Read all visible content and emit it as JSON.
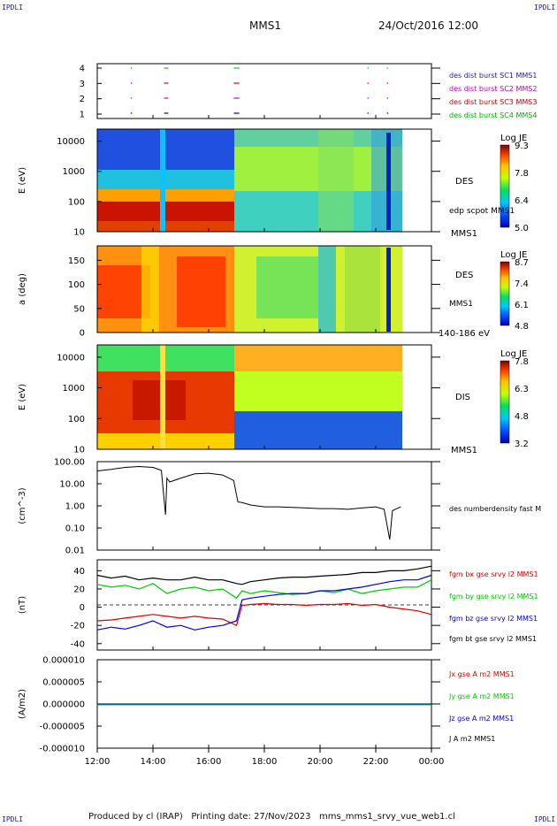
{
  "header": {
    "corner_label": "IPDLI",
    "mission": "MMS1",
    "date": "24/Oct/2016 12:00"
  },
  "footer": {
    "text": "Produced by cl (IRAP)   Printing date: 27/Nov/2023   mms_mms1_srvy_vue_web1.cl"
  },
  "x_axis": {
    "ticks": [
      "12:00",
      "14:00",
      "16:00",
      "18:00",
      "20:00",
      "22:00",
      "00:00"
    ]
  },
  "colors": {
    "black": "#000000",
    "red": "#e00000",
    "green": "#00cc00",
    "blue": "#0000e0",
    "magenta": "#cc00cc",
    "label_blue": "#1a1ab0",
    "label_magenta": "#c000c0",
    "label_red": "#d00000",
    "label_green": "#00b000"
  },
  "chart_data": [
    {
      "type": "timeline",
      "name": "burst-panel",
      "yticks": [
        "4",
        "3",
        "2",
        "1"
      ],
      "legend": [
        {
          "label": "des dist burst SC1 MMS1",
          "color": "#1a1ab0"
        },
        {
          "label": "des dist burst SC2 MMS2",
          "color": "#c000c0"
        },
        {
          "label": "des dist burst SC3 MMS3",
          "color": "#d00000"
        },
        {
          "label": "des dist burst SC4 MMS4",
          "color": "#00b000"
        }
      ],
      "intervals_hours": [
        [
          13.2,
          13.25
        ],
        [
          14.4,
          14.55
        ],
        [
          16.9,
          17.1
        ],
        [
          21.7,
          21.72
        ],
        [
          22.4,
          22.42
        ]
      ]
    },
    {
      "type": "heatmap",
      "name": "des-energy-spectrogram",
      "ylabel": "E (eV)",
      "yticks": [
        "10000",
        "1000",
        "100",
        "10"
      ],
      "ylog": true,
      "ylim": [
        10,
        25000
      ],
      "right_label": "DES",
      "right_sub_label": "edp scpot MMS1",
      "right_bottom_label": "MMS1",
      "colorbar": {
        "title": "Log JE",
        "ticks": [
          "9.3",
          "7.8",
          "6.4",
          "5.0"
        ]
      }
    },
    {
      "type": "heatmap",
      "name": "des-pitch-angle",
      "ylabel": "a (deg)",
      "yticks": [
        "150",
        "100",
        "50",
        "0"
      ],
      "ylim": [
        0,
        180
      ],
      "right_label": "DES",
      "right_sub_label": "MMS1",
      "right_bottom_label": "140-186 eV",
      "colorbar": {
        "title": "Log JE",
        "ticks": [
          "8.7",
          "7.4",
          "6.1",
          "4.8"
        ]
      }
    },
    {
      "type": "heatmap",
      "name": "dis-energy-spectrogram",
      "ylabel": "E (eV)",
      "yticks": [
        "10000",
        "1000",
        "100",
        "10"
      ],
      "ylog": true,
      "ylim": [
        10,
        25000
      ],
      "right_label": "DIS",
      "right_bottom_label": "MMS1",
      "colorbar": {
        "title": "Log JE",
        "ticks": [
          "7.8",
          "6.3",
          "4.8",
          "3.2"
        ]
      }
    },
    {
      "type": "line",
      "name": "density-panel",
      "ylabel": "(cm^-3)",
      "yticks": [
        "100.00",
        "10.00",
        "1.00",
        "0.10",
        "0.01"
      ],
      "ylog": true,
      "ylim": [
        0.01,
        100
      ],
      "legend": [
        {
          "label": "des numberdensity fast M",
          "color": "#000000"
        }
      ],
      "x_hours": [
        12.0,
        12.5,
        13.0,
        13.5,
        14.0,
        14.3,
        14.45,
        14.5,
        14.6,
        15.0,
        15.5,
        16.0,
        16.5,
        16.9,
        17.05,
        17.2,
        17.5,
        18.0,
        18.5,
        19.0,
        19.5,
        20.0,
        20.5,
        21.0,
        21.5,
        22.0,
        22.3,
        22.5,
        22.6,
        22.7,
        22.9
      ],
      "values": [
        38,
        45,
        55,
        60,
        55,
        40,
        0.4,
        18,
        12,
        18,
        28,
        30,
        25,
        14,
        1.5,
        1.4,
        1.1,
        0.9,
        0.9,
        0.85,
        0.8,
        0.75,
        0.75,
        0.7,
        0.8,
        0.9,
        0.7,
        0.03,
        0.6,
        0.7,
        0.9
      ]
    },
    {
      "type": "line",
      "name": "fgm-panel",
      "ylabel": "(nT)",
      "yticks": [
        "40",
        "20",
        "0",
        "-20",
        "-40"
      ],
      "ylim": [
        -47,
        52
      ],
      "legend": [
        {
          "label": "fgm bx gse srvy l2 MMS1",
          "color": "#e00000"
        },
        {
          "label": "fgm by gse srvy l2 MMS1",
          "color": "#00cc00"
        },
        {
          "label": "fgm bz gse srvy l2 MMS1",
          "color": "#0000e0"
        },
        {
          "label": "fgm bt gse srvy l2 MMS1",
          "color": "#000000"
        }
      ],
      "x_hours": [
        12.0,
        12.5,
        13.0,
        13.5,
        14.0,
        14.5,
        15.0,
        15.5,
        16.0,
        16.5,
        17.0,
        17.2,
        17.5,
        18.0,
        18.5,
        19.0,
        19.5,
        20.0,
        20.5,
        21.0,
        21.5,
        22.0,
        22.5,
        23.0,
        23.5,
        24.0
      ],
      "series": [
        {
          "name": "bx",
          "values": [
            -15,
            -14,
            -12,
            -10,
            -8,
            -10,
            -12,
            -10,
            -12,
            -13,
            -20,
            2,
            3,
            4,
            3,
            3,
            2,
            3,
            3,
            4,
            2,
            3,
            0,
            -2,
            -4,
            -8
          ]
        },
        {
          "name": "by",
          "values": [
            25,
            22,
            24,
            20,
            26,
            15,
            20,
            22,
            18,
            20,
            10,
            18,
            15,
            18,
            16,
            14,
            15,
            18,
            16,
            20,
            15,
            18,
            20,
            22,
            22,
            30
          ]
        },
        {
          "name": "bz",
          "values": [
            -25,
            -22,
            -24,
            -20,
            -15,
            -22,
            -20,
            -25,
            -22,
            -20,
            -15,
            8,
            10,
            12,
            14,
            15,
            15,
            18,
            18,
            20,
            22,
            25,
            28,
            30,
            30,
            35
          ]
        },
        {
          "name": "bt",
          "values": [
            35,
            32,
            34,
            30,
            32,
            30,
            30,
            33,
            30,
            30,
            26,
            25,
            28,
            30,
            32,
            33,
            33,
            34,
            35,
            36,
            38,
            38,
            40,
            40,
            42,
            45
          ]
        }
      ]
    },
    {
      "type": "line",
      "name": "current-panel",
      "ylabel": "(A/m2)",
      "yticks": [
        "0.000010",
        "0.000005",
        "0.000000",
        "-0.000005",
        "-0.000010"
      ],
      "ylim": [
        -1e-05,
        1e-05
      ],
      "legend": [
        {
          "label": "Jx gse A m2 MMS1",
          "color": "#e00000"
        },
        {
          "label": "Jy gse A m2 MMS1",
          "color": "#00cc00"
        },
        {
          "label": "Jz gse A m2 MMS1",
          "color": "#0000e0"
        },
        {
          "label": "J A m2 MMS1",
          "color": "#000000"
        }
      ]
    }
  ]
}
